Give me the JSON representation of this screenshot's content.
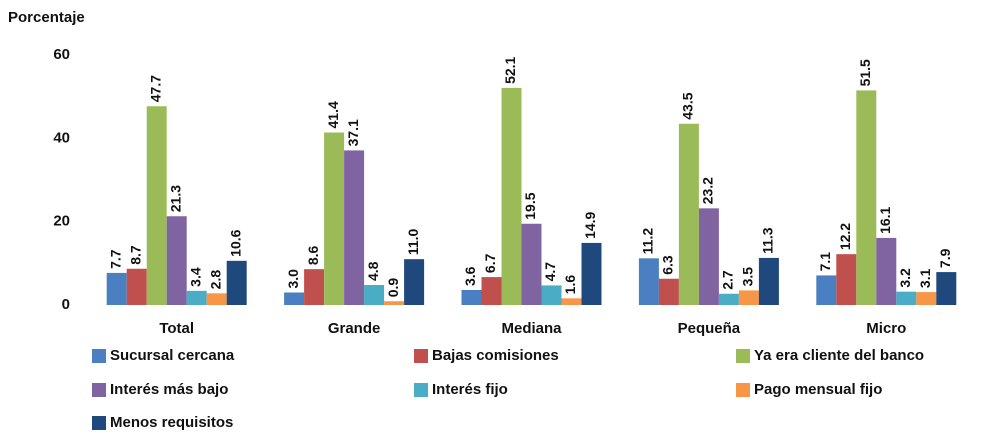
{
  "chart_data": {
    "type": "bar",
    "y_label": "Porcentaje",
    "categories": [
      "Total",
      "Grande",
      "Mediana",
      "Pequeña",
      "Micro"
    ],
    "ylim": [
      0,
      60
    ],
    "yticks": [
      0,
      20,
      40,
      60
    ],
    "series": [
      {
        "name": "Sucursal cercana",
        "color": "#4a7fc1",
        "values": [
          7.7,
          3.0,
          3.6,
          11.2,
          7.1
        ],
        "value_labels": [
          "7.7",
          "3.0",
          "3.6",
          "11.2",
          "7.1"
        ]
      },
      {
        "name": "Bajas comisiones",
        "color": "#c0504d",
        "values": [
          8.7,
          8.6,
          6.7,
          6.3,
          12.2
        ],
        "value_labels": [
          "8.7",
          "8.6",
          "6.7",
          "6.3",
          "12.2"
        ]
      },
      {
        "name": "Ya era cliente del banco",
        "color": "#9bbb59",
        "values": [
          47.7,
          41.4,
          52.1,
          43.5,
          51.5
        ],
        "value_labels": [
          "47.7",
          "41.4",
          "52.1",
          "43.5",
          "51.5"
        ]
      },
      {
        "name": "Interés más bajo",
        "color": "#8064a2",
        "values": [
          21.3,
          37.1,
          19.5,
          23.2,
          16.1
        ],
        "value_labels": [
          "21.3",
          "37.1",
          "19.5",
          "23.2",
          "16.1"
        ]
      },
      {
        "name": "Interés fijo",
        "color": "#4bacc6",
        "values": [
          3.4,
          4.8,
          4.7,
          2.7,
          3.2
        ],
        "value_labels": [
          "3.4",
          "4.8",
          "4.7",
          "2.7",
          "3.2"
        ]
      },
      {
        "name": "Pago mensual fijo",
        "color": "#f79646",
        "values": [
          2.8,
          0.9,
          1.6,
          3.5,
          3.1
        ],
        "value_labels": [
          "2.8",
          "0.9",
          "1.6",
          "3.5",
          "3.1"
        ]
      },
      {
        "name": "Menos requisitos",
        "color": "#1f497d",
        "values": [
          10.6,
          11.0,
          14.9,
          11.3,
          7.9
        ],
        "value_labels": [
          "10.6",
          "11.0",
          "14.9",
          "11.3",
          "7.9"
        ]
      }
    ]
  }
}
